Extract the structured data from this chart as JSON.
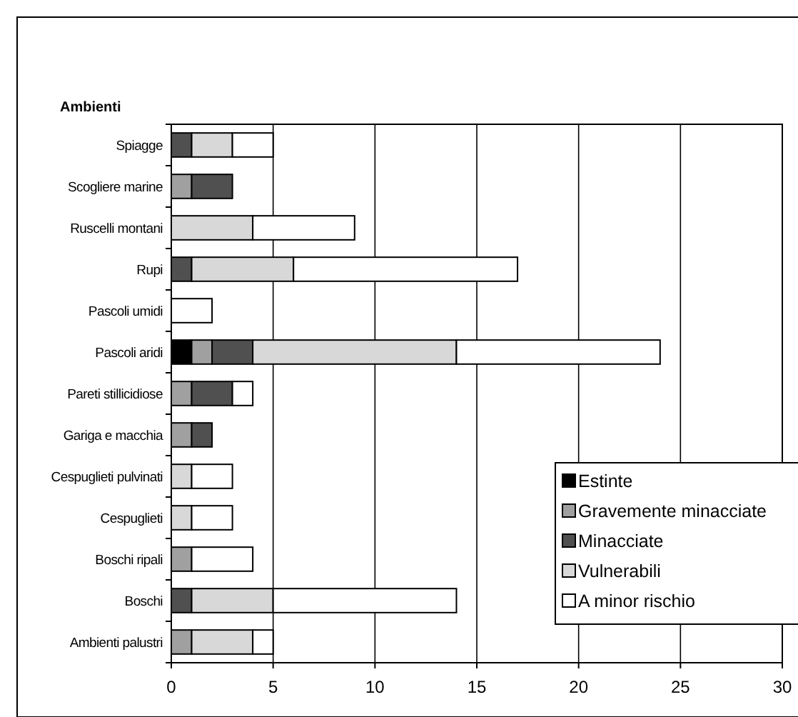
{
  "chart_data": {
    "type": "bar",
    "orientation": "horizontal",
    "stacked": true,
    "ylabel": "Ambienti",
    "categories": [
      "Spiagge",
      "Scogliere marine",
      "Ruscelli montani",
      "Rupi",
      "Pascoli umidi",
      "Pascoli aridi",
      "Pareti stillicidiose",
      "Gariga e macchia",
      "Cespuglieti pulvinati",
      "Cespuglieti",
      "Boschi ripali",
      "Boschi",
      "Ambienti palustri"
    ],
    "series": [
      {
        "name": "Estinte",
        "color": "#000000",
        "values": [
          0,
          0,
          0,
          0,
          0,
          1,
          0,
          0,
          0,
          0,
          0,
          0,
          0
        ]
      },
      {
        "name": "Gravemente minacciate",
        "color": "#a0a0a0",
        "values": [
          0,
          1,
          0,
          0,
          0,
          1,
          1,
          1,
          0,
          0,
          1,
          0,
          1
        ]
      },
      {
        "name": "Minacciate",
        "color": "#505050",
        "values": [
          1,
          2,
          0,
          1,
          0,
          2,
          2,
          1,
          0,
          0,
          0,
          1,
          0
        ]
      },
      {
        "name": "Vulnerabili",
        "color": "#d8d8d8",
        "values": [
          2,
          0,
          4,
          5,
          0,
          10,
          0,
          0,
          1,
          1,
          0,
          4,
          3
        ]
      },
      {
        "name": "A minor rischio",
        "color": "#ffffff",
        "values": [
          2,
          0,
          5,
          11,
          2,
          10,
          1,
          0,
          2,
          2,
          3,
          9,
          1
        ]
      }
    ],
    "xlim": [
      0,
      30
    ],
    "xticks": [
      0,
      5,
      10,
      15,
      20,
      25,
      30
    ],
    "grid": "x",
    "legend": "bottom right"
  }
}
